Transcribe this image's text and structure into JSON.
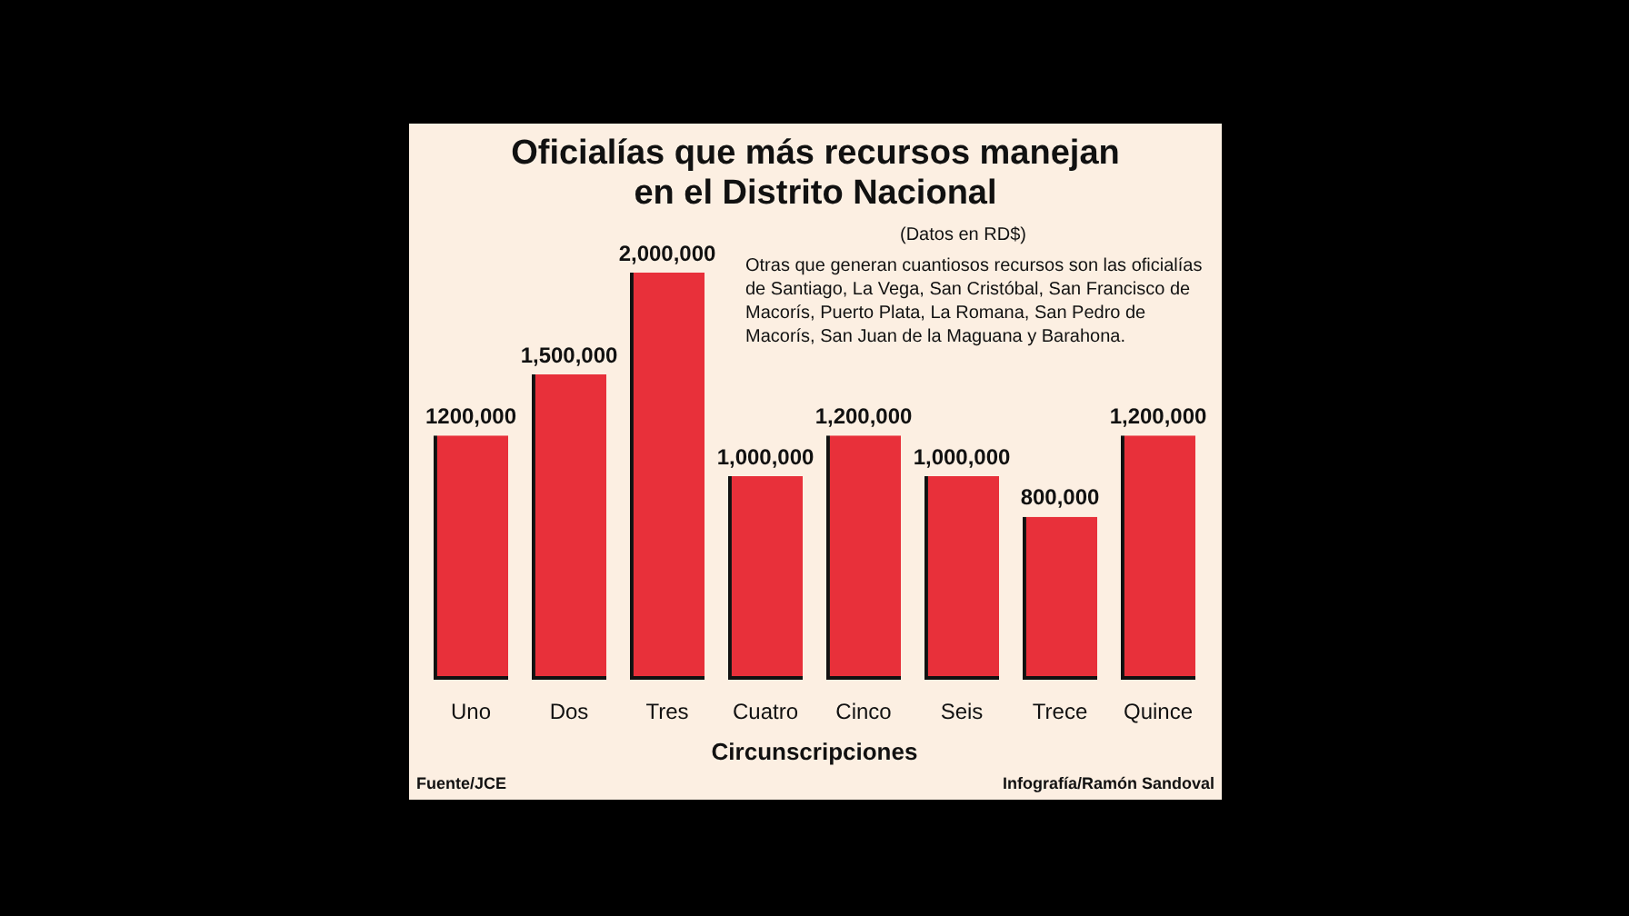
{
  "chart_data": {
    "type": "bar",
    "title": "Oficialías que más recursos manejan\nen el Distrito Nacional",
    "categories": [
      "Uno",
      "Dos",
      "Tres",
      "Cuatro",
      "Cinco",
      "Seis",
      "Trece",
      "Quince"
    ],
    "values": [
      1200000,
      1500000,
      2000000,
      1000000,
      1200000,
      1000000,
      800000,
      1200000
    ],
    "value_labels": [
      "1200,000",
      "1,500,000",
      "2,000,000",
      "1,000,000",
      "1,200,000",
      "1,000,000",
      "800,000",
      "1,200,000"
    ],
    "color": "#e8303a",
    "xlabel": "Circunscripciones",
    "annotations": [
      "(Datos en RD$)",
      "Otras que generan  cuantiosos recursos son las oficialías de Santiago, La Vega, San Cristóbal, San Francisco de Macorís, Puerto Plata, La Romana, San Pedro de Macorís, San Juan de la Maguana y Barahona.",
      "Fuente/JCE",
      "Infografía/Ramón Sandoval"
    ]
  }
}
